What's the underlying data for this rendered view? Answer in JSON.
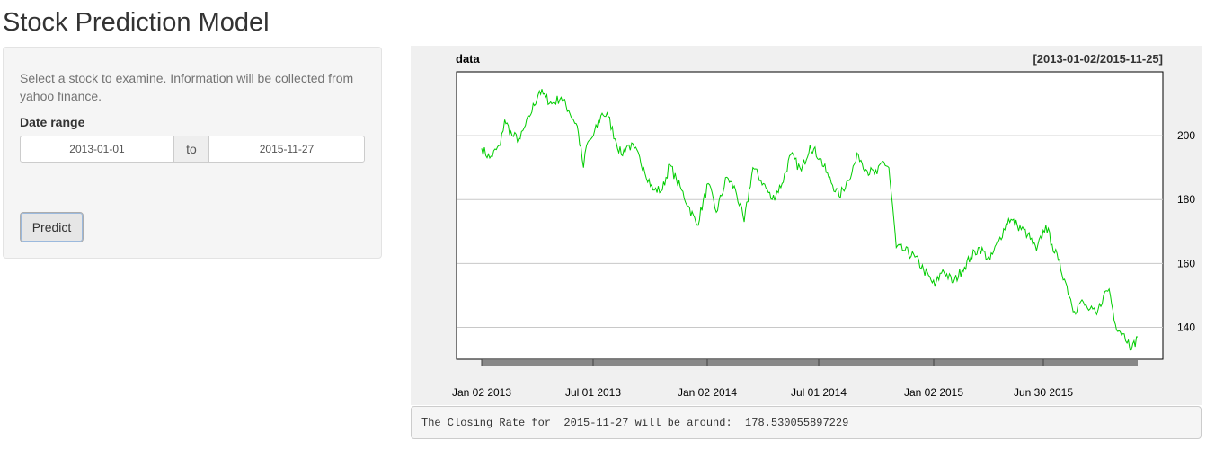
{
  "page": {
    "title": "Stock Prediction Model"
  },
  "sidebar": {
    "intro": "Select a stock to examine. Information will be collected from yahoo finance.",
    "date_range": {
      "label": "Date range",
      "start": "2013-01-01",
      "separator": "to",
      "end": "2015-11-27"
    },
    "predict_button": "Predict"
  },
  "chart_data": {
    "type": "line",
    "title": "data",
    "range_label": "[2013-01-02/2015-11-25]",
    "ylim": [
      130,
      220
    ],
    "y_ticks": [
      140,
      160,
      180,
      200
    ],
    "x_ticks": [
      "Jan 02 2013",
      "Jul 01 2013",
      "Jan 02 2014",
      "Jul 01 2014",
      "Jan 02 2015",
      "Jun 30 2015"
    ],
    "grid": true,
    "line_color": "#00cc00",
    "series": [
      {
        "x": [
          "2013-01-02",
          "2013-01-15",
          "2013-02-01",
          "2013-02-08",
          "2013-02-20",
          "2013-03-05",
          "2013-03-20",
          "2013-04-05",
          "2013-04-15",
          "2013-04-25",
          "2013-05-10",
          "2013-05-22",
          "2013-06-05",
          "2013-06-15",
          "2013-06-20",
          "2013-07-01",
          "2013-07-15",
          "2013-07-25",
          "2013-08-05",
          "2013-08-15",
          "2013-08-25",
          "2013-09-05",
          "2013-09-20",
          "2013-10-05",
          "2013-10-20",
          "2013-11-01",
          "2013-11-12",
          "2013-11-20",
          "2013-12-01",
          "2013-12-15",
          "2014-01-02",
          "2014-01-15",
          "2014-02-01",
          "2014-02-15",
          "2014-03-01",
          "2014-03-15",
          "2014-04-01",
          "2014-04-15",
          "2014-05-01",
          "2014-05-15",
          "2014-06-01",
          "2014-06-15",
          "2014-07-01",
          "2014-07-15",
          "2014-08-01",
          "2014-08-15",
          "2014-09-01",
          "2014-09-15",
          "2014-10-01",
          "2014-10-10",
          "2014-10-20",
          "2014-11-01",
          "2014-11-15",
          "2014-12-01",
          "2014-12-15",
          "2015-01-02",
          "2015-01-15",
          "2015-02-01",
          "2015-02-15",
          "2015-03-01",
          "2015-03-15",
          "2015-04-01",
          "2015-04-15",
          "2015-05-01",
          "2015-05-15",
          "2015-06-01",
          "2015-06-15",
          "2015-06-30",
          "2015-07-10",
          "2015-07-20",
          "2015-08-01",
          "2015-08-15",
          "2015-08-25",
          "2015-09-05",
          "2015-09-20",
          "2015-10-01",
          "2015-10-10",
          "2015-10-20",
          "2015-11-01",
          "2015-11-10",
          "2015-11-15",
          "2015-11-25"
        ],
        "y": [
          196,
          193,
          197,
          205,
          200,
          199,
          206,
          214,
          212,
          210,
          212,
          208,
          203,
          190,
          197,
          200,
          207,
          206,
          199,
          194,
          197,
          196,
          190,
          183,
          183,
          191,
          186,
          183,
          178,
          172,
          185,
          176,
          187,
          183,
          173,
          190,
          185,
          180,
          185,
          194,
          189,
          197,
          193,
          187,
          181,
          186,
          194,
          189,
          188,
          192,
          190,
          165,
          164,
          162,
          158,
          153,
          158,
          154,
          158,
          162,
          165,
          161,
          167,
          174,
          172,
          169,
          164,
          172,
          166,
          161,
          154,
          145,
          148,
          146,
          144,
          150,
          152,
          141,
          138,
          136,
          133,
          137
        ]
      }
    ]
  },
  "output": {
    "text": "The Closing Rate for  2015-11-27 will be around:  178.530055897229"
  }
}
